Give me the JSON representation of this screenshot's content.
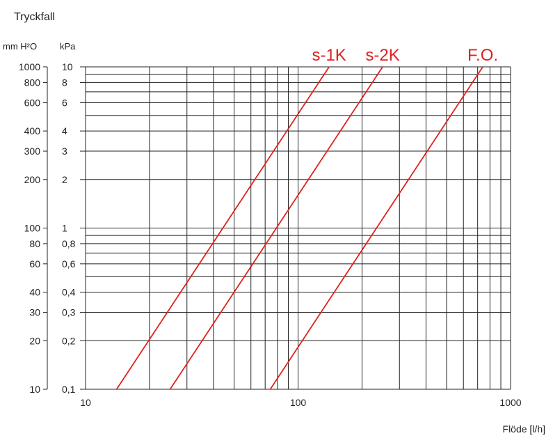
{
  "chart_data": {
    "type": "line",
    "title": "Tryckfall",
    "xlabel": "Flöde [l/h]",
    "x_scale": "log",
    "y_scale": "log",
    "xlim": [
      10,
      1000
    ],
    "ylim": [
      0.1,
      10
    ],
    "grid": true,
    "x_ticks": [
      10,
      100,
      1000
    ],
    "x_tick_labels": [
      "10",
      "100",
      "1000"
    ],
    "y_axes": [
      {
        "unit": "mm H²O",
        "ticks": [
          10,
          20,
          30,
          40,
          60,
          80,
          100,
          200,
          300,
          400,
          600,
          800,
          1000
        ],
        "tick_labels": [
          "10",
          "20",
          "30",
          "40",
          "60",
          "80",
          "100",
          "200",
          "300",
          "400",
          "600",
          "800",
          "1000"
        ]
      },
      {
        "unit": "kPa",
        "ticks": [
          0.1,
          0.2,
          0.3,
          0.4,
          0.6,
          0.8,
          1,
          2,
          3,
          4,
          6,
          8,
          10
        ],
        "tick_labels": [
          "0,1",
          "0,2",
          "0,3",
          "0,4",
          "0,6",
          "0,8",
          "1",
          "2",
          "3",
          "4",
          "6",
          "8",
          "10"
        ]
      }
    ],
    "series_color": "#e02020",
    "series": [
      {
        "name": "s-1K",
        "x": [
          14,
          140
        ],
        "y": [
          0.1,
          10
        ]
      },
      {
        "name": "s-2K",
        "x": [
          25,
          250
        ],
        "y": [
          0.1,
          10
        ]
      },
      {
        "name": "F.O.",
        "x": [
          74,
          740
        ],
        "y": [
          0.1,
          10
        ]
      }
    ]
  }
}
